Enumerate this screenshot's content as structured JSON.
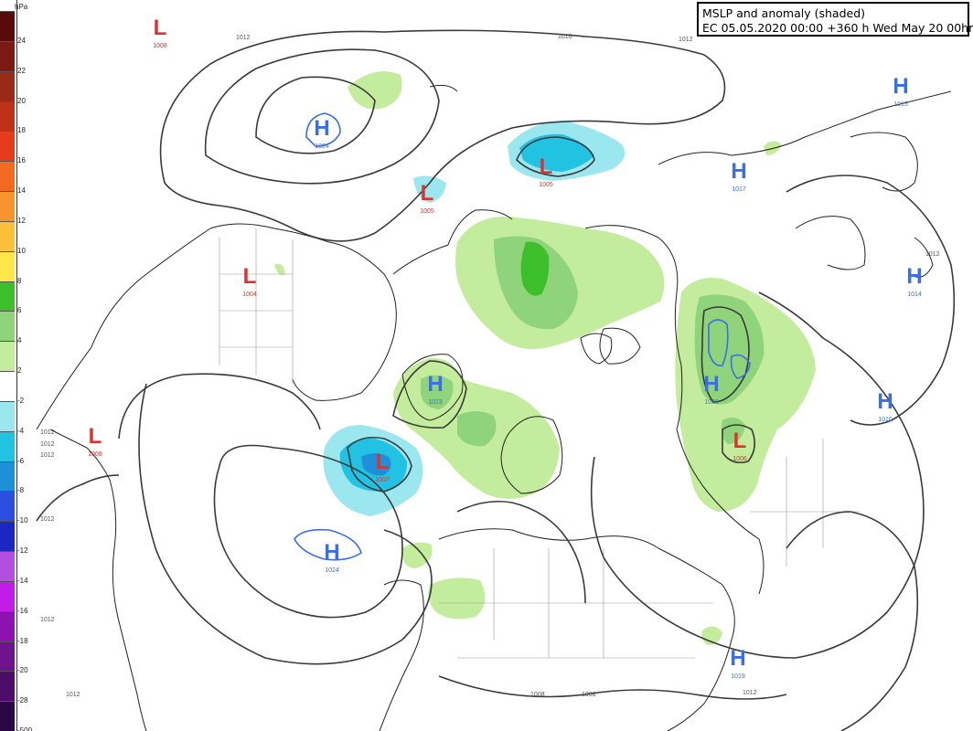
{
  "title": {
    "line1": "MSLP and anomaly (shaded)",
    "line2": "EC 05.05.2020 00:00 +360 h Wed May 20 00hrs"
  },
  "legend": {
    "unit": "hPa",
    "entries": [
      {
        "label": "24",
        "color": "#5a0a0a"
      },
      {
        "label": "22",
        "color": "#7a1a12"
      },
      {
        "label": "20",
        "color": "#9a2a18"
      },
      {
        "label": "18",
        "color": "#c0311c"
      },
      {
        "label": "16",
        "color": "#e63c1e"
      },
      {
        "label": "14",
        "color": "#f26a22"
      },
      {
        "label": "12",
        "color": "#f79430"
      },
      {
        "label": "10",
        "color": "#fbbf3a"
      },
      {
        "label": "8",
        "color": "#fde64a"
      },
      {
        "label": "6",
        "color": "#3cbf2a"
      },
      {
        "label": "4",
        "color": "#8fd47a"
      },
      {
        "label": "2",
        "color": "#c3ec9c"
      },
      {
        "label": "-2",
        "color": "#ffffff"
      },
      {
        "label": "-4",
        "color": "#9be7ef"
      },
      {
        "label": "-6",
        "color": "#22c2e3"
      },
      {
        "label": "-8",
        "color": "#1e8fd9"
      },
      {
        "label": "-10",
        "color": "#2b4fe0"
      },
      {
        "label": "-12",
        "color": "#1c26c2"
      },
      {
        "label": "-14",
        "color": "#b34ee0"
      },
      {
        "label": "-16",
        "color": "#c41ce8"
      },
      {
        "label": "-18",
        "color": "#8e12b2"
      },
      {
        "label": "-20",
        "color": "#6e128e"
      },
      {
        "label": "-28",
        "color": "#4d0c6a"
      },
      {
        "label": "-500",
        "color": "#2b0745"
      }
    ]
  },
  "centers": [
    {
      "type": "L",
      "value": "1008",
      "color": "#e03030"
    },
    {
      "type": "H",
      "value": "1024",
      "color": "#3a6ee8"
    },
    {
      "type": "L",
      "value": "1005",
      "color": "#e03030"
    },
    {
      "type": "L",
      "value": "1005",
      "color": "#e03030"
    },
    {
      "type": "H",
      "value": "1017",
      "color": "#3a6ee8"
    },
    {
      "type": "H",
      "value": "1015",
      "color": "#3a6ee8"
    },
    {
      "type": "L",
      "value": "1004",
      "color": "#e03030"
    },
    {
      "type": "H",
      "value": "1014",
      "color": "#3a6ee8"
    },
    {
      "type": "H",
      "value": "1023",
      "color": "#3a6ee8"
    },
    {
      "type": "H",
      "value": "1029",
      "color": "#3a6ee8"
    },
    {
      "type": "H",
      "value": "1010",
      "color": "#3a6ee8"
    },
    {
      "type": "L",
      "value": "1006",
      "color": "#e03030"
    },
    {
      "type": "L",
      "value": "1008",
      "color": "#e03030"
    },
    {
      "type": "L",
      "value": "1007",
      "color": "#e03030"
    },
    {
      "type": "H",
      "value": "1024",
      "color": "#3a6ee8"
    },
    {
      "type": "H",
      "value": "1019",
      "color": "#3a6ee8"
    }
  ],
  "isobar_labels": [
    "1012",
    "1016",
    "1012",
    "1012",
    "1012",
    "1012",
    "1012",
    "1012",
    "1012",
    "1008",
    "1008",
    "1012",
    "1012"
  ]
}
